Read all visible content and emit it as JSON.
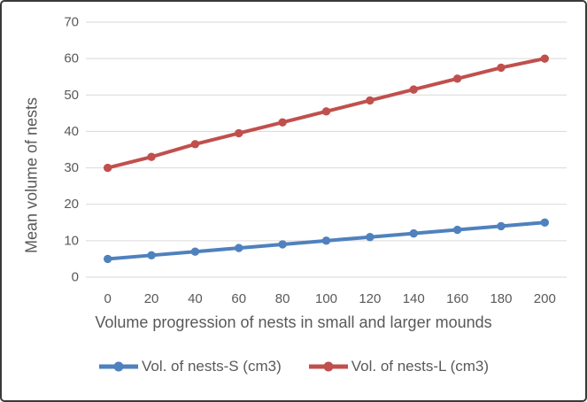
{
  "chart_data": {
    "type": "line",
    "x_title": "Volume progression of nests in small and larger mounds",
    "y_title": "Mean volume of nests",
    "categories": [
      "0",
      "20",
      "40",
      "60",
      "80",
      "100",
      "120",
      "140",
      "160",
      "180",
      "200"
    ],
    "series": [
      {
        "name": "Vol. of nests-S (cm3)",
        "color": "#4F81BD",
        "marker": "circle",
        "values": [
          5,
          6,
          7,
          8,
          9,
          10,
          11,
          12,
          13,
          14,
          15
        ]
      },
      {
        "name": "Vol. of nests-L (cm3)",
        "color": "#C0504D",
        "marker": "circle",
        "values": [
          30,
          33,
          36.5,
          39.5,
          42.5,
          45.5,
          48.5,
          51.5,
          54.5,
          57.5,
          60
        ]
      }
    ],
    "y_axis": {
      "min": 0,
      "max": 70,
      "step": 10
    },
    "grid": true,
    "legend_position": "bottom",
    "colors": {
      "gridline": "#D9D9D9",
      "tick_text": "#595959",
      "title_text": "#595959",
      "frame_border": "#3A3A3A",
      "background": "#FFFFFF"
    }
  }
}
